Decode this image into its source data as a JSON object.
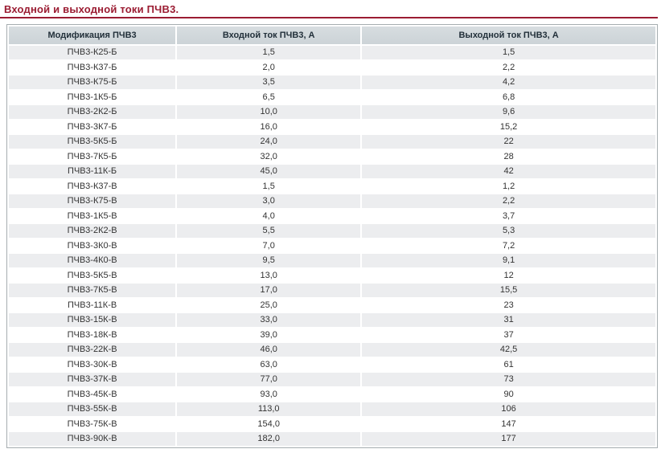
{
  "page": {
    "title": "Входной и выходной токи ПЧВ3."
  },
  "colors": {
    "accent": "#9b1c32",
    "header_bg": "#ccd3d7",
    "header_bg_top": "#d7dde0",
    "header_text": "#22303a",
    "row_alt_bg": "#ecedef",
    "table_border": "#a6adb0"
  },
  "table": {
    "columns": [
      "Модификация ПЧВ3",
      "Входной ток ПЧВ3, А",
      "Выходной ток ПЧВ3, А"
    ],
    "rows": [
      [
        "ПЧВ3-К25-Б",
        "1,5",
        "1,5"
      ],
      [
        "ПЧВ3-К37-Б",
        "2,0",
        "2,2"
      ],
      [
        "ПЧВ3-К75-Б",
        "3,5",
        "4,2"
      ],
      [
        "ПЧВ3-1К5-Б",
        "6,5",
        "6,8"
      ],
      [
        "ПЧВ3-2К2-Б",
        "10,0",
        "9,6"
      ],
      [
        "ПЧВ3-3К7-Б",
        "16,0",
        "15,2"
      ],
      [
        "ПЧВ3-5К5-Б",
        "24,0",
        "22"
      ],
      [
        "ПЧВ3-7К5-Б",
        "32,0",
        "28"
      ],
      [
        "ПЧВ3-11К-Б",
        "45,0",
        "42"
      ],
      [
        "ПЧВ3-К37-В",
        "1,5",
        "1,2"
      ],
      [
        "ПЧВ3-К75-В",
        "3,0",
        "2,2"
      ],
      [
        "ПЧВ3-1К5-В",
        "4,0",
        "3,7"
      ],
      [
        "ПЧВ3-2К2-В",
        "5,5",
        "5,3"
      ],
      [
        "ПЧВ3-3К0-В",
        "7,0",
        "7,2"
      ],
      [
        "ПЧВ3-4К0-В",
        "9,5",
        "9,1"
      ],
      [
        "ПЧВ3-5К5-В",
        "13,0",
        "12"
      ],
      [
        "ПЧВ3-7К5-В",
        "17,0",
        "15,5"
      ],
      [
        "ПЧВ3-11К-В",
        "25,0",
        "23"
      ],
      [
        "ПЧВ3-15К-В",
        "33,0",
        "31"
      ],
      [
        "ПЧВ3-18К-В",
        "39,0",
        "37"
      ],
      [
        "ПЧВ3-22К-В",
        "46,0",
        "42,5"
      ],
      [
        "ПЧВ3-30К-В",
        "63,0",
        "61"
      ],
      [
        "ПЧВ3-37К-В",
        "77,0",
        "73"
      ],
      [
        "ПЧВ3-45К-В",
        "93,0",
        "90"
      ],
      [
        "ПЧВ3-55К-В",
        "113,0",
        "106"
      ],
      [
        "ПЧВ3-75К-В",
        "154,0",
        "147"
      ],
      [
        "ПЧВ3-90К-В",
        "182,0",
        "177"
      ]
    ],
    "cell_names": [
      "modification-cell",
      "input-current-cell",
      "output-current-cell"
    ]
  }
}
